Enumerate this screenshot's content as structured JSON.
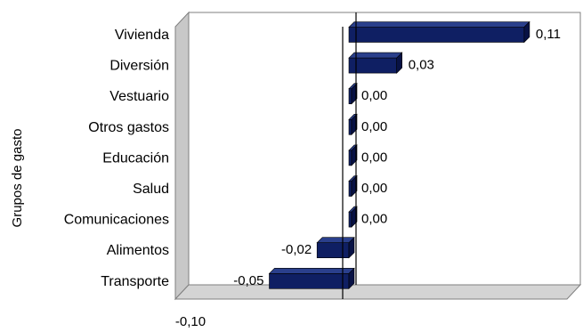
{
  "chart_data": {
    "type": "bar",
    "orientation": "horizontal",
    "title": "",
    "xlabel": "",
    "ylabel": "Grupos de gasto",
    "categories": [
      "Vivienda",
      "Diversión",
      "Vestuario",
      "Otros gastos",
      "Educación",
      "Salud",
      "Comunicaciones",
      "Alimentos",
      "Transporte"
    ],
    "values": [
      0.11,
      0.03,
      0.0,
      0.0,
      0.0,
      0.0,
      0.0,
      -0.02,
      -0.05
    ],
    "data_labels": [
      "0,11",
      "0,03",
      "0,00",
      "0,00",
      "0,00",
      "0,00",
      "0,00",
      "-0,02",
      "-0,05"
    ],
    "x_tick_labels": [
      "-0,10"
    ],
    "xlim": [
      -0.1,
      0.15
    ],
    "grid": false,
    "legend": "none",
    "colors": {
      "bar": "#0f1f63",
      "bar_top": "#2a3f8c",
      "bar_side": "#081245",
      "plot_wall": "#ffffff",
      "plot_floor": "#d9d9d9",
      "plot_side": "#c0c0c0"
    }
  }
}
